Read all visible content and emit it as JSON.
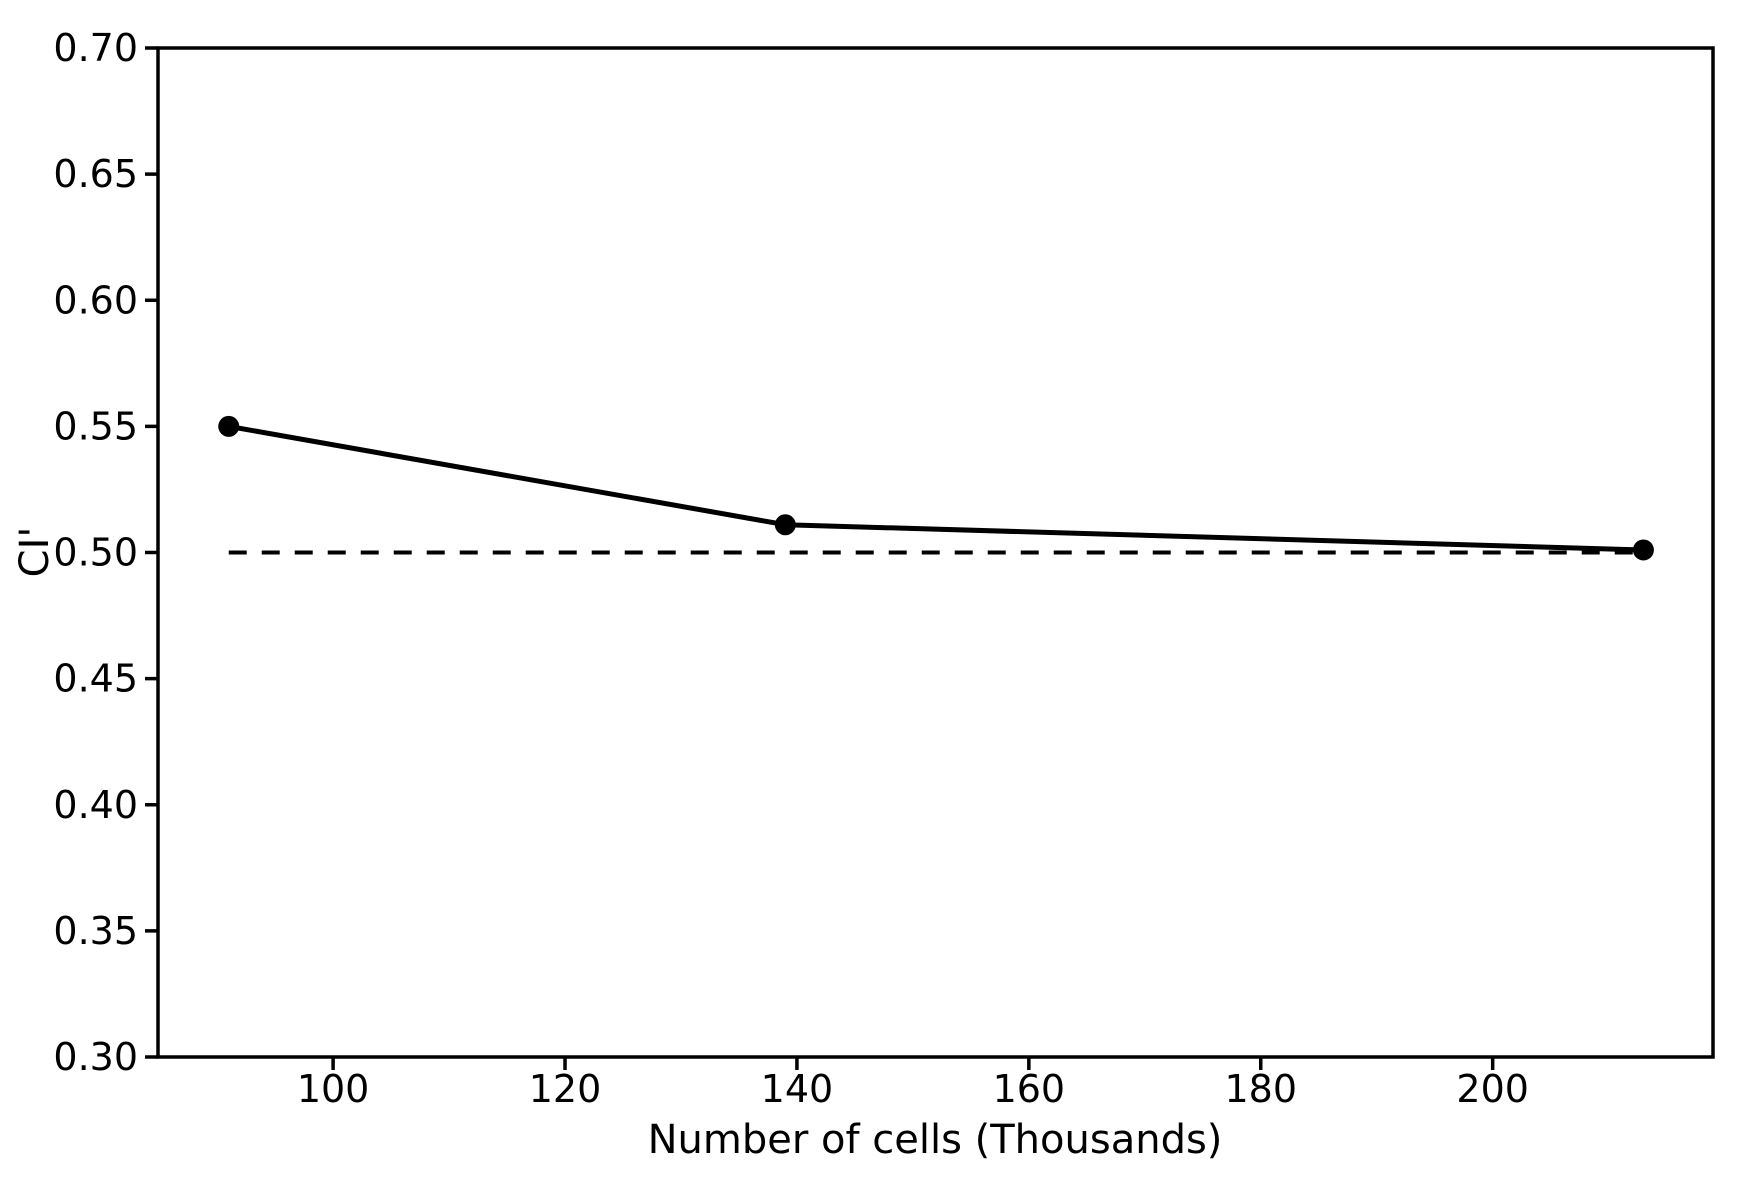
{
  "figure": {
    "background_color": "#ffffff",
    "foreground_color": "#000000"
  },
  "chart_data": {
    "type": "line",
    "title": "",
    "xlabel": "Number of cells (Thousands)",
    "ylabel": "CI'",
    "series": [
      {
        "name": "CI'",
        "x": [
          91,
          139,
          213
        ],
        "values": [
          0.55,
          0.511,
          0.501
        ]
      }
    ],
    "reference_line": {
      "y": 0.5,
      "style": "dashed",
      "x_start": 91,
      "x_end": 213
    },
    "xlim": [
      84.9,
      219.0
    ],
    "ylim": [
      0.3,
      0.7
    ],
    "xticks": [
      100,
      120,
      140,
      160,
      180,
      200
    ],
    "xtick_labels": [
      "100",
      "120",
      "140",
      "160",
      "180",
      "200"
    ],
    "yticks": [
      0.3,
      0.35,
      0.4,
      0.45,
      0.5,
      0.55,
      0.6,
      0.65,
      0.7
    ],
    "ytick_labels": [
      "0.30",
      "0.35",
      "0.40",
      "0.45",
      "0.50",
      "0.55",
      "0.60",
      "0.65",
      "0.70"
    ],
    "grid": false,
    "legend": false,
    "line_color": "#000000",
    "marker": "circle"
  }
}
